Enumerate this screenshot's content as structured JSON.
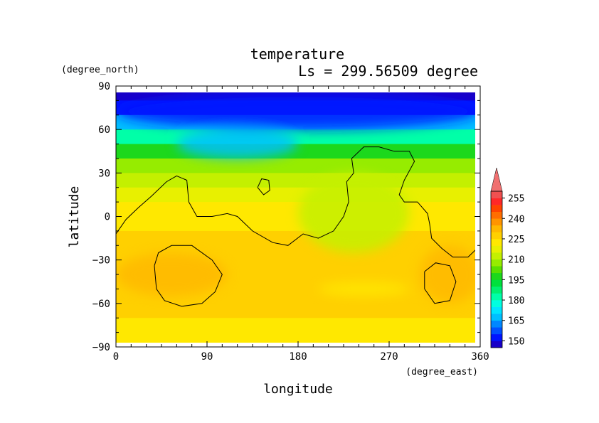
{
  "chart_data": {
    "type": "heatmap",
    "title": "temperature",
    "subtitle": "Ls = 299.56509 degree",
    "xlabel": "longitude",
    "ylabel": "latitude",
    "x_units": "(degree_east)",
    "y_units": "(degree_north)",
    "xlim": [
      0,
      360
    ],
    "ylim": [
      -90,
      90
    ],
    "x_ticks": [
      0,
      90,
      180,
      270,
      360
    ],
    "y_ticks": [
      90,
      60,
      30,
      0,
      -30,
      -60,
      -90
    ],
    "x_tick_labels": [
      "0",
      "90",
      "180",
      "270",
      "360"
    ],
    "y_tick_labels": [
      "90",
      "60",
      "30",
      "0",
      "−30",
      "−60",
      "−90"
    ],
    "colorbar": {
      "levels": [
        145,
        150,
        155,
        160,
        165,
        170,
        175,
        180,
        185,
        190,
        195,
        200,
        205,
        210,
        215,
        220,
        225,
        230,
        235,
        240,
        245,
        250,
        255,
        260
      ],
      "colors": [
        "#1800c8",
        "#0014ff",
        "#0050ff",
        "#0087ff",
        "#00bfff",
        "#00e5ff",
        "#00ffe0",
        "#00ffa8",
        "#00f070",
        "#00e03c",
        "#1cd81c",
        "#5ae000",
        "#96ec00",
        "#c4f000",
        "#e8f000",
        "#ffe800",
        "#ffd000",
        "#ffb800",
        "#ff9400",
        "#ff6e00",
        "#ff4400",
        "#ff2828",
        "#f05050",
        "#f07070"
      ],
      "tick_labels": [
        "255",
        "240",
        "225",
        "210",
        "195",
        "180",
        "165",
        "150"
      ],
      "tick_values": [
        255,
        240,
        225,
        210,
        195,
        180,
        165,
        150
      ]
    },
    "latitude_rows": [
      {
        "lat": 85,
        "temp": 147
      },
      {
        "lat": 75,
        "temp": 152
      },
      {
        "lat": 65,
        "temp": 165
      },
      {
        "lat": 55,
        "temp": 180
      },
      {
        "lat": 45,
        "temp": 195
      },
      {
        "lat": 35,
        "temp": 205
      },
      {
        "lat": 25,
        "temp": 212
      },
      {
        "lat": 15,
        "temp": 217
      },
      {
        "lat": 5,
        "temp": 220
      },
      {
        "lat": -5,
        "temp": 223
      },
      {
        "lat": -15,
        "temp": 225
      },
      {
        "lat": -25,
        "temp": 226
      },
      {
        "lat": -35,
        "temp": 228
      },
      {
        "lat": -45,
        "temp": 227
      },
      {
        "lat": -55,
        "temp": 226
      },
      {
        "lat": -65,
        "temp": 225
      },
      {
        "lat": -75,
        "temp": 224
      },
      {
        "lat": -85,
        "temp": 224
      }
    ],
    "region_data": [
      {
        "lon": [
          0,
          360
        ],
        "lat": [
          60,
          85
        ],
        "temp": 150
      },
      {
        "lon": [
          60,
          180
        ],
        "lat": [
          40,
          60
        ],
        "temp": 168
      },
      {
        "lon": [
          180,
          290
        ],
        "lat": [
          -25,
          30
        ],
        "temp": 212
      },
      {
        "lon": [
          0,
          110
        ],
        "lat": [
          -55,
          -25
        ],
        "temp": 233
      },
      {
        "lon": [
          300,
          360
        ],
        "lat": [
          -60,
          -20
        ],
        "temp": 232
      },
      {
        "lon": [
          200,
          290
        ],
        "lat": [
          -45,
          -55
        ],
        "temp": 221
      }
    ],
    "contours": [
      [
        [
          0,
          -12
        ],
        [
          10,
          -2
        ],
        [
          22,
          6
        ],
        [
          35,
          14
        ],
        [
          50,
          24
        ],
        [
          60,
          28
        ],
        [
          70,
          25
        ],
        [
          72,
          10
        ],
        [
          80,
          0
        ],
        [
          95,
          0
        ],
        [
          110,
          2
        ],
        [
          120,
          0
        ],
        [
          135,
          -10
        ],
        [
          155,
          -18
        ],
        [
          170,
          -20
        ],
        [
          185,
          -12
        ],
        [
          200,
          -15
        ],
        [
          215,
          -10
        ],
        [
          225,
          0
        ],
        [
          230,
          10
        ],
        [
          228,
          24
        ],
        [
          235,
          30
        ],
        [
          233,
          40
        ],
        [
          245,
          48
        ],
        [
          260,
          48
        ],
        [
          275,
          45
        ],
        [
          290,
          45
        ],
        [
          295,
          38
        ],
        [
          285,
          25
        ],
        [
          280,
          15
        ],
        [
          285,
          10
        ],
        [
          298,
          10
        ],
        [
          308,
          2
        ],
        [
          310,
          -5
        ],
        [
          312,
          -15
        ],
        [
          322,
          -22
        ],
        [
          333,
          -28
        ],
        [
          348,
          -28
        ],
        [
          360,
          -20
        ]
      ],
      [
        [
          140,
          20
        ],
        [
          144,
          26
        ],
        [
          151,
          25
        ],
        [
          152,
          18
        ],
        [
          146,
          15
        ],
        [
          140,
          20
        ]
      ],
      [
        [
          38,
          -34
        ],
        [
          42,
          -25
        ],
        [
          55,
          -20
        ],
        [
          75,
          -20
        ],
        [
          95,
          -30
        ],
        [
          105,
          -40
        ],
        [
          98,
          -52
        ],
        [
          85,
          -60
        ],
        [
          65,
          -62
        ],
        [
          48,
          -58
        ],
        [
          40,
          -50
        ],
        [
          38,
          -34
        ]
      ],
      [
        [
          305,
          -38
        ],
        [
          316,
          -32
        ],
        [
          330,
          -34
        ],
        [
          336,
          -45
        ],
        [
          330,
          -58
        ],
        [
          315,
          -60
        ],
        [
          305,
          -50
        ],
        [
          305,
          -38
        ]
      ]
    ],
    "grid": false,
    "legend": "right"
  }
}
